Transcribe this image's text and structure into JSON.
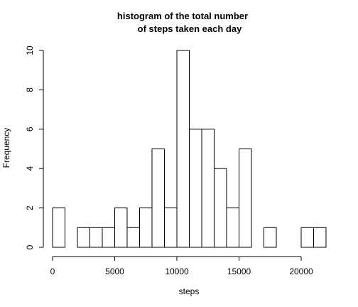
{
  "chart_data": {
    "type": "bar",
    "title_line1": "histogram of the total number",
    "title_line2": "of steps taken each day",
    "xlabel": "steps",
    "ylabel": "Frequency",
    "bin_width": 1000,
    "bin_starts": [
      0,
      1000,
      2000,
      3000,
      4000,
      5000,
      6000,
      7000,
      8000,
      9000,
      10000,
      11000,
      12000,
      13000,
      14000,
      15000,
      16000,
      17000,
      18000,
      19000,
      20000,
      21000
    ],
    "values": [
      2,
      0,
      1,
      1,
      1,
      2,
      1,
      2,
      5,
      2,
      10,
      6,
      6,
      4,
      2,
      5,
      0,
      1,
      0,
      0,
      1,
      1
    ],
    "xlim": [
      0,
      22000
    ],
    "ylim": [
      0,
      10
    ],
    "x_ticks": [
      0,
      5000,
      10000,
      15000,
      20000
    ],
    "x_tick_labels": [
      "0",
      "5000",
      "10000",
      "15000",
      "20000"
    ],
    "y_ticks": [
      0,
      2,
      4,
      6,
      8,
      10
    ],
    "y_tick_labels": [
      "0",
      "2",
      "4",
      "6",
      "8",
      "10"
    ],
    "grid": false,
    "bar_fill": "#ffffff",
    "bar_stroke": "#000000"
  }
}
